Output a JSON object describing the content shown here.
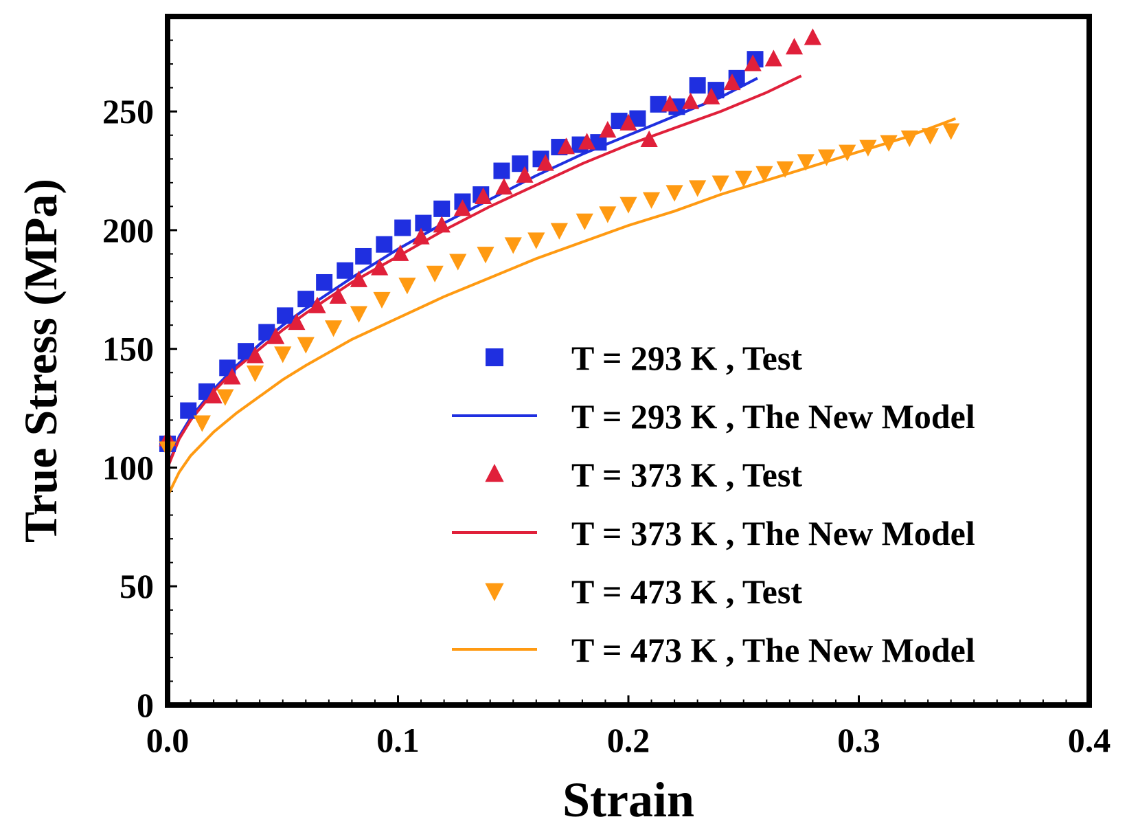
{
  "chart_data": {
    "type": "scatter",
    "xlabel": "Strain",
    "ylabel": "True Stress (MPa)",
    "xlim": [
      0,
      0.4
    ],
    "ylim": [
      0,
      290
    ],
    "x_ticks": [
      0,
      0.1,
      0.2,
      0.3,
      0.4
    ],
    "x_tick_labels": [
      "0.0",
      "0.1",
      "0.2",
      "0.3",
      "0.4"
    ],
    "y_ticks": [
      0,
      50,
      100,
      150,
      200,
      250
    ],
    "y_tick_labels": [
      "0",
      "50",
      "100",
      "150",
      "200",
      "250"
    ],
    "grid": false,
    "legend_position": "lower-right",
    "series": [
      {
        "name": "T = 293 K , Test",
        "kind": "scatter",
        "marker": "square",
        "color": "#1f2fe0",
        "x": [
          0.0,
          0.009,
          0.017,
          0.026,
          0.034,
          0.043,
          0.051,
          0.06,
          0.068,
          0.077,
          0.085,
          0.094,
          0.102,
          0.111,
          0.119,
          0.128,
          0.136,
          0.145,
          0.153,
          0.162,
          0.17,
          0.179,
          0.187,
          0.196,
          0.204,
          0.213,
          0.221,
          0.23,
          0.238,
          0.247,
          0.255
        ],
        "y": [
          110,
          124,
          132,
          142,
          149,
          157,
          164,
          171,
          178,
          183,
          189,
          194,
          201,
          203,
          209,
          212,
          215,
          225,
          228,
          230,
          235,
          236,
          237,
          246,
          247,
          253,
          252,
          261,
          259,
          264,
          272
        ]
      },
      {
        "name": "T = 293 K , The New Model",
        "kind": "line",
        "color": "#1f2fe0",
        "x": [
          0.0,
          0.005,
          0.01,
          0.02,
          0.03,
          0.04,
          0.05,
          0.06,
          0.08,
          0.1,
          0.12,
          0.14,
          0.16,
          0.18,
          0.2,
          0.22,
          0.24,
          0.256
        ],
        "y": [
          100,
          113,
          121,
          133,
          143,
          152,
          160,
          167,
          180,
          192,
          203,
          213,
          223,
          232,
          240,
          248,
          256,
          264
        ]
      },
      {
        "name": "T = 373 K , Test",
        "kind": "scatter",
        "marker": "triangle-up",
        "color": "#e0203a",
        "x": [
          0.0,
          0.02,
          0.028,
          0.038,
          0.047,
          0.056,
          0.065,
          0.074,
          0.083,
          0.092,
          0.101,
          0.11,
          0.119,
          0.128,
          0.137,
          0.146,
          0.155,
          0.164,
          0.173,
          0.182,
          0.191,
          0.2,
          0.209,
          0.218,
          0.227,
          0.236,
          0.245,
          0.254,
          0.263,
          0.272,
          0.28
        ],
        "y": [
          112,
          130,
          138,
          147,
          155,
          161,
          168,
          172,
          179,
          184,
          190,
          197,
          202,
          209,
          214,
          218,
          223,
          228,
          235,
          237,
          242,
          245,
          238,
          253,
          254,
          256,
          262,
          270,
          272,
          277,
          281
        ]
      },
      {
        "name": "T = 373 K , The New Model",
        "kind": "line",
        "color": "#e0203a",
        "x": [
          0.0,
          0.005,
          0.01,
          0.02,
          0.03,
          0.04,
          0.05,
          0.06,
          0.08,
          0.1,
          0.12,
          0.14,
          0.16,
          0.18,
          0.2,
          0.22,
          0.24,
          0.26,
          0.275
        ],
        "y": [
          100,
          112,
          120,
          132,
          142,
          150,
          158,
          165,
          178,
          189,
          200,
          210,
          219,
          228,
          236,
          243,
          250,
          258,
          265
        ]
      },
      {
        "name": "T = 473 K , Test",
        "kind": "scatter",
        "marker": "triangle-down",
        "color": "#ff9a12",
        "x": [
          0.0,
          0.015,
          0.025,
          0.038,
          0.05,
          0.06,
          0.072,
          0.083,
          0.093,
          0.104,
          0.116,
          0.126,
          0.138,
          0.15,
          0.16,
          0.17,
          0.181,
          0.191,
          0.2,
          0.21,
          0.22,
          0.23,
          0.24,
          0.25,
          0.259,
          0.268,
          0.277,
          0.286,
          0.295,
          0.304,
          0.313,
          0.322,
          0.331,
          0.34
        ],
        "y": [
          108,
          119,
          130,
          140,
          148,
          152,
          159,
          165,
          171,
          177,
          182,
          187,
          190,
          194,
          196,
          200,
          204,
          207,
          211,
          213,
          216,
          218,
          220,
          222,
          224,
          226,
          229,
          231,
          233,
          235,
          237,
          239,
          240,
          242
        ]
      },
      {
        "name": "T = 473 K , The New Model",
        "kind": "line",
        "color": "#ff9a12",
        "x": [
          0.0,
          0.005,
          0.01,
          0.02,
          0.03,
          0.04,
          0.05,
          0.06,
          0.08,
          0.1,
          0.12,
          0.14,
          0.16,
          0.18,
          0.2,
          0.22,
          0.24,
          0.26,
          0.28,
          0.3,
          0.32,
          0.342
        ],
        "y": [
          88,
          98,
          105,
          115,
          123,
          130,
          137,
          143,
          154,
          163,
          172,
          180,
          188,
          195,
          202,
          208,
          215,
          221,
          227,
          233,
          239,
          247
        ]
      }
    ]
  }
}
